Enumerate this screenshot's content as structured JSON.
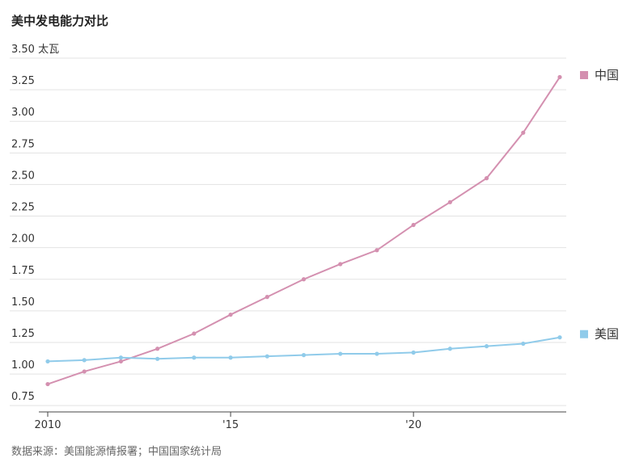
{
  "chart_data": {
    "type": "line",
    "title": "美中发电能力对比",
    "source": "数据来源：美国能源情报署；中国国家统计局",
    "x": [
      2010,
      2011,
      2012,
      2013,
      2014,
      2015,
      2016,
      2017,
      2018,
      2019,
      2020,
      2021,
      2022,
      2023,
      2024
    ],
    "xlim": [
      2010,
      2024
    ],
    "xticks": [
      2010,
      {
        "value": 2015,
        "label": "'15"
      },
      {
        "value": 2020,
        "label": "'20"
      }
    ],
    "ylim": [
      0.7,
      3.5
    ],
    "yticks": [
      {
        "value": 3.5,
        "label": "3.50 太瓦"
      },
      3.25,
      {
        "value": 3.0,
        "label": "3.00"
      },
      2.75,
      {
        "value": 2.5,
        "label": "2.50"
      },
      2.25,
      {
        "value": 2.0,
        "label": "2.00"
      },
      1.75,
      {
        "value": 1.5,
        "label": "1.50"
      },
      1.25,
      {
        "value": 1.0,
        "label": "1.00"
      },
      0.75
    ],
    "grid": true,
    "series": [
      {
        "name": "中国",
        "color": "#d490b0",
        "values": [
          0.92,
          1.02,
          1.1,
          1.2,
          1.32,
          1.47,
          1.61,
          1.75,
          1.87,
          1.98,
          2.18,
          2.36,
          2.55,
          2.91,
          3.35
        ]
      },
      {
        "name": "美国",
        "color": "#90cbea",
        "values": [
          1.1,
          1.11,
          1.13,
          1.12,
          1.13,
          1.13,
          1.14,
          1.15,
          1.16,
          1.16,
          1.17,
          1.2,
          1.22,
          1.24,
          1.29
        ]
      }
    ]
  }
}
